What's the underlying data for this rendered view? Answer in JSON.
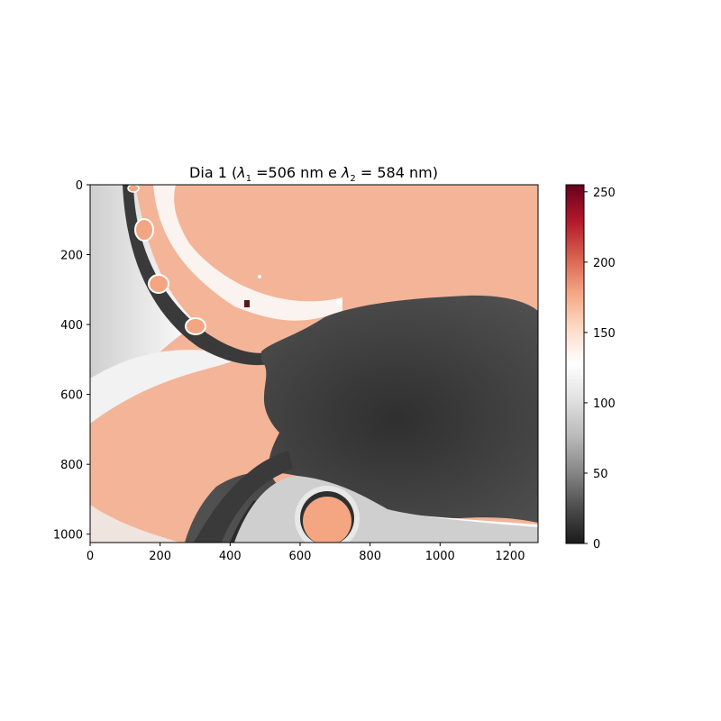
{
  "figure": {
    "title_prefix": "Dia 1 (",
    "lambda1_symbol": "λ",
    "lambda1_sub": "1",
    "lambda1_value": " =506 nm e ",
    "lambda2_symbol": "λ",
    "lambda2_sub": "2",
    "lambda2_value": " = 584 nm)"
  },
  "image_axes": {
    "xlim": [
      0,
      1280
    ],
    "ylim": [
      1024,
      0
    ],
    "x_ticks": [
      0,
      200,
      400,
      600,
      800,
      1000,
      1200
    ],
    "x_tick_labels": [
      "0",
      "200",
      "400",
      "600",
      "800",
      "1000",
      "1200"
    ],
    "y_ticks": [
      0,
      200,
      400,
      600,
      800,
      1000
    ],
    "y_tick_labels": [
      "0",
      "200",
      "400",
      "600",
      "800",
      "1000"
    ]
  },
  "colorbar": {
    "colormap": "RdGy_r",
    "vmin": 0,
    "vmax": 255,
    "ticks": [
      0,
      50,
      100,
      150,
      200,
      250
    ],
    "tick_labels": [
      "0",
      "50",
      "100",
      "150",
      "200",
      "250"
    ],
    "color_stops": [
      "#1a1a1a",
      "#4d4d4d",
      "#878787",
      "#bababa",
      "#e0e0e0",
      "#ffffff",
      "#fddbc7",
      "#f4a582",
      "#d6604d",
      "#b2182b",
      "#67001f"
    ]
  },
  "scene": {
    "background_orange": "#f4b498",
    "dark_tissue": "#3e3e3e",
    "light_gray": "#d8d8d8"
  }
}
